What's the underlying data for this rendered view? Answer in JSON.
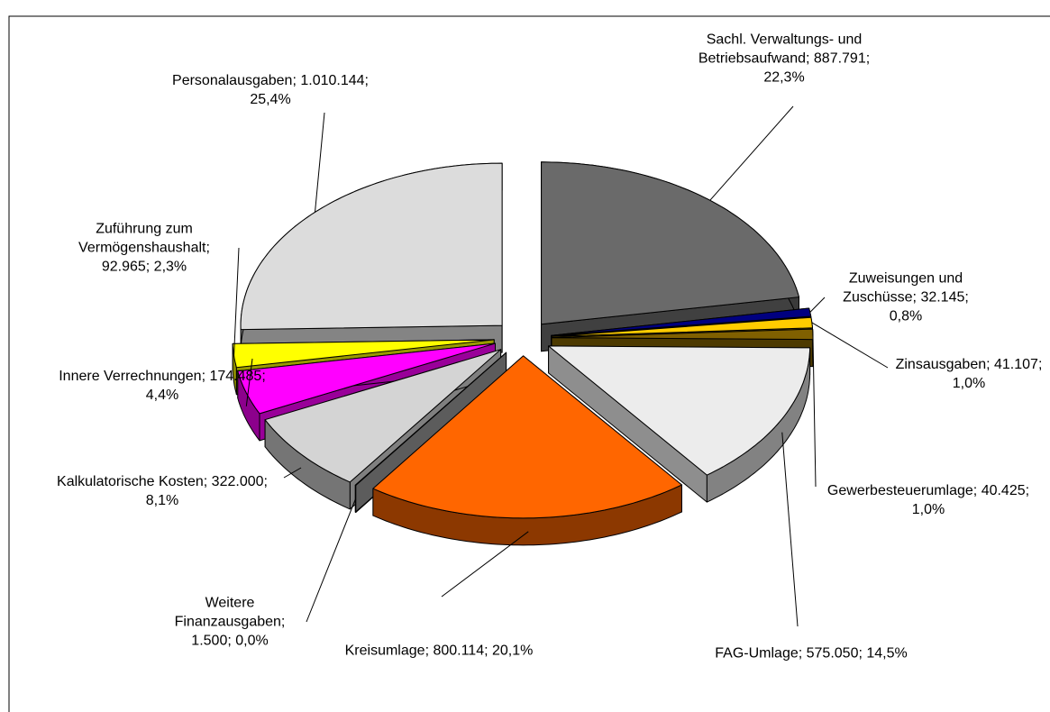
{
  "chart_data": {
    "type": "pie3d",
    "categories": [
      "Sachl. Verwaltungs- und Betriebsaufwand",
      "Zuweisungen und Zuschüsse",
      "Zinsausgaben",
      "Gewerbesteuerumlage",
      "FAG-Umlage",
      "Kreisumlage",
      "Weitere Finanzausgaben",
      "Kalkulatorische Kosten",
      "Innere Verrechnungen",
      "Zuführung zum Vermögenshaushalt",
      "Personalausgaben"
    ],
    "values": [
      887791,
      32145,
      41107,
      40425,
      575050,
      800114,
      1500,
      322000,
      174485,
      92965,
      1010144
    ],
    "value_labels": [
      "887.791",
      "32.145",
      "41.107",
      "40.425",
      "575.050",
      "800.114",
      "1.500",
      "322.000",
      "174.485",
      "92.965",
      "1.010.144"
    ],
    "percents": [
      22.3,
      0.8,
      1.0,
      1.0,
      14.5,
      20.1,
      0.0,
      8.1,
      4.4,
      2.3,
      25.4
    ],
    "percent_labels": [
      "22,3%",
      "0,8%",
      "1,0%",
      "1,0%",
      "14,5%",
      "20,1%",
      "0,0%",
      "8,1%",
      "4,4%",
      "2,3%",
      "25,4%"
    ],
    "label_separator": "; ",
    "colors": [
      "#6a6a6a",
      "#000080",
      "#ffcc00",
      "#806000",
      "#ececec",
      "#ff6600",
      "#9a9a9a",
      "#d4d4d4",
      "#ff00ff",
      "#ffff00",
      "#dcdcdc"
    ]
  }
}
